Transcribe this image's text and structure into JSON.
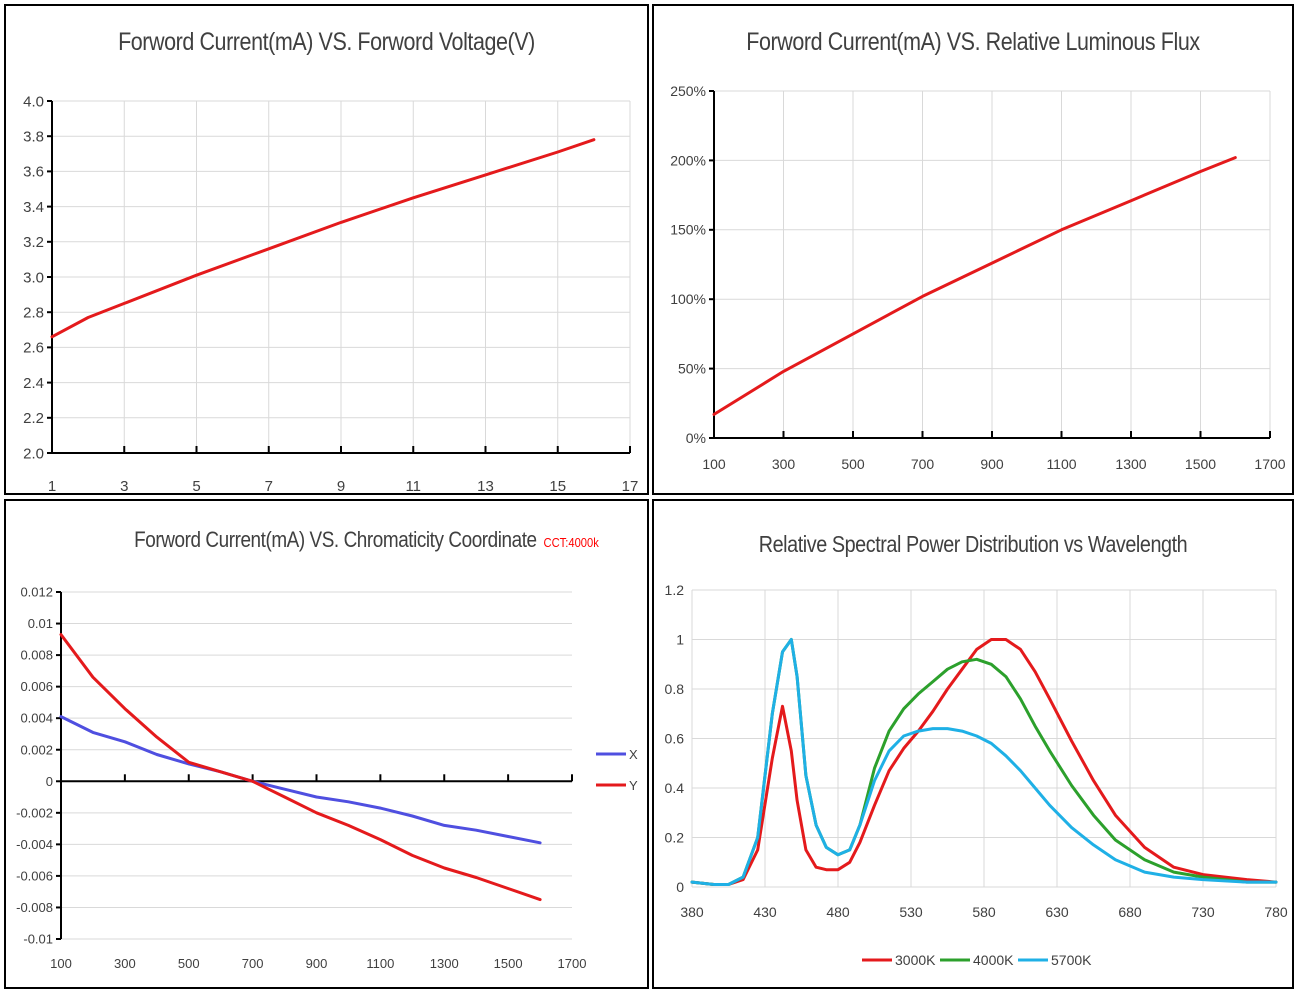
{
  "chart_data": [
    {
      "type": "line",
      "title": "Forword Current(mA) VS. Forword Voltage(V)",
      "xlim": [
        1,
        17
      ],
      "ylim": [
        2.0,
        4.0
      ],
      "x_ticks": [
        "1",
        "3",
        "5",
        "7",
        "9",
        "11",
        "13",
        "15",
        "17"
      ],
      "y_ticks": [
        "2.0",
        "2.2",
        "2.4",
        "2.6",
        "2.8",
        "3.0",
        "3.2",
        "3.4",
        "3.6",
        "3.8",
        "4.0"
      ],
      "grid": true,
      "colors": {
        "line": "#e41a1c"
      },
      "series": [
        {
          "x": [
            1,
            2,
            3,
            5,
            7,
            9,
            11,
            13,
            15,
            16
          ],
          "values": [
            2.66,
            2.77,
            2.85,
            3.01,
            3.16,
            3.31,
            3.45,
            3.58,
            3.71,
            3.78
          ]
        }
      ]
    },
    {
      "type": "line",
      "title": "Forword Current(mA) VS. Relative Luminous Flux",
      "xlim": [
        100,
        1700
      ],
      "ylim": [
        0,
        250
      ],
      "x_ticks": [
        "100",
        "300",
        "500",
        "700",
        "900",
        "1100",
        "1300",
        "1500",
        "1700"
      ],
      "y_ticks": [
        "0%",
        "50%",
        "100%",
        "150%",
        "200%",
        "250%"
      ],
      "grid": true,
      "colors": {
        "line": "#e41a1c"
      },
      "series": [
        {
          "x": [
            100,
            300,
            500,
            700,
            900,
            1100,
            1300,
            1500,
            1600
          ],
          "values": [
            17,
            48,
            75,
            102,
            126,
            150,
            171,
            192,
            202
          ]
        }
      ]
    },
    {
      "type": "line",
      "title": "Forword Current(mA) VS. Chromaticity Coordinate",
      "title_note": "CCT:4000k",
      "xlim": [
        100,
        1700
      ],
      "ylim": [
        -0.01,
        0.012
      ],
      "x_ticks": [
        "100",
        "300",
        "500",
        "700",
        "900",
        "1100",
        "1300",
        "1500",
        "1700"
      ],
      "y_ticks": [
        "-0.01",
        "-0.008",
        "-0.006",
        "-0.004",
        "-0.002",
        "0",
        "0.002",
        "0.004",
        "0.006",
        "0.008",
        "0.01",
        "0.012"
      ],
      "grid": true,
      "legend": "right",
      "series": [
        {
          "name": "X",
          "color": "#4f4fe0",
          "x": [
            100,
            200,
            300,
            400,
            500,
            600,
            700,
            800,
            900,
            1000,
            1100,
            1200,
            1300,
            1400,
            1500,
            1600
          ],
          "values": [
            0.0041,
            0.0031,
            0.0025,
            0.0017,
            0.0011,
            0.0006,
            0.0,
            -0.0005,
            -0.001,
            -0.0013,
            -0.0017,
            -0.0022,
            -0.0028,
            -0.0031,
            -0.0035,
            -0.0039
          ]
        },
        {
          "name": "Y",
          "color": "#e41a1c",
          "x": [
            100,
            200,
            300,
            400,
            500,
            600,
            700,
            800,
            900,
            1000,
            1100,
            1200,
            1300,
            1400,
            1500,
            1600
          ],
          "values": [
            0.0093,
            0.0066,
            0.0046,
            0.0028,
            0.0012,
            0.0006,
            0.0,
            -0.001,
            -0.002,
            -0.0028,
            -0.0037,
            -0.0047,
            -0.0055,
            -0.0061,
            -0.0068,
            -0.0075
          ]
        }
      ]
    },
    {
      "type": "line",
      "title": "Relative Spectral Power Distribution vs Wavelength",
      "xlim": [
        380,
        780
      ],
      "ylim": [
        0,
        1.2
      ],
      "x_ticks": [
        "380",
        "430",
        "480",
        "530",
        "580",
        "630",
        "680",
        "730",
        "780"
      ],
      "y_ticks": [
        "0",
        "0.2",
        "0.4",
        "0.6",
        "0.8",
        "1",
        "1.2"
      ],
      "grid": true,
      "legend": "bottom",
      "x": [
        380,
        395,
        405,
        415,
        425,
        435,
        442,
        448,
        452,
        458,
        465,
        472,
        480,
        488,
        495,
        505,
        515,
        525,
        535,
        545,
        555,
        565,
        575,
        585,
        595,
        605,
        615,
        625,
        640,
        655,
        670,
        690,
        710,
        730,
        760,
        780
      ],
      "series": [
        {
          "name": "3000K",
          "color": "#e41a1c",
          "values": [
            0.02,
            0.01,
            0.01,
            0.03,
            0.15,
            0.52,
            0.73,
            0.55,
            0.35,
            0.15,
            0.08,
            0.07,
            0.07,
            0.1,
            0.18,
            0.33,
            0.47,
            0.56,
            0.63,
            0.71,
            0.8,
            0.88,
            0.96,
            1.0,
            1.0,
            0.96,
            0.87,
            0.76,
            0.59,
            0.43,
            0.29,
            0.16,
            0.08,
            0.05,
            0.03,
            0.02
          ]
        },
        {
          "name": "4000K",
          "color": "#2ca02c",
          "values": [
            0.02,
            0.01,
            0.01,
            0.04,
            0.2,
            0.7,
            0.95,
            1.0,
            0.85,
            0.45,
            0.25,
            0.16,
            0.13,
            0.15,
            0.25,
            0.48,
            0.63,
            0.72,
            0.78,
            0.83,
            0.88,
            0.91,
            0.92,
            0.9,
            0.85,
            0.76,
            0.65,
            0.55,
            0.41,
            0.29,
            0.19,
            0.11,
            0.06,
            0.04,
            0.02,
            0.02
          ]
        },
        {
          "name": "5700K",
          "color": "#1fb0e6",
          "values": [
            0.02,
            0.01,
            0.01,
            0.04,
            0.2,
            0.7,
            0.95,
            1.0,
            0.85,
            0.45,
            0.25,
            0.16,
            0.13,
            0.15,
            0.25,
            0.43,
            0.55,
            0.61,
            0.63,
            0.64,
            0.64,
            0.63,
            0.61,
            0.58,
            0.53,
            0.47,
            0.4,
            0.33,
            0.24,
            0.17,
            0.11,
            0.06,
            0.04,
            0.03,
            0.02,
            0.02
          ]
        }
      ]
    }
  ]
}
